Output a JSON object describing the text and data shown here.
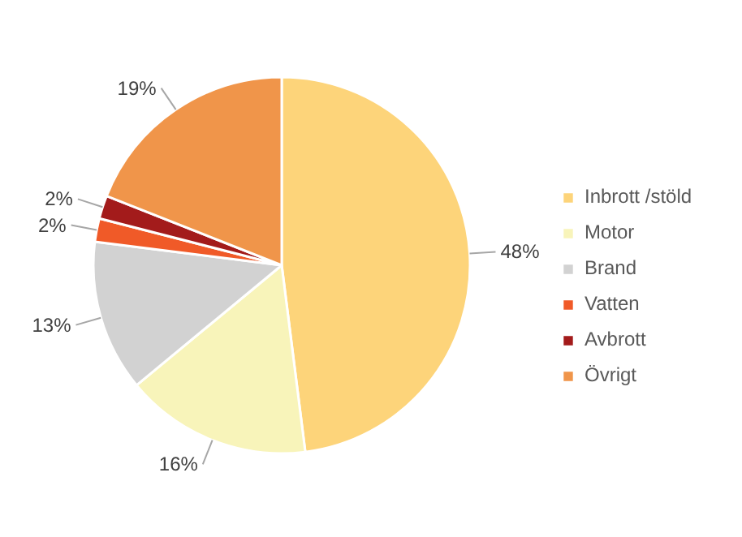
{
  "chart_data": {
    "type": "pie",
    "categories": [
      "Inbrott /stöld",
      "Motor",
      "Brand",
      "Vatten",
      "Avbrott",
      "Övrigt"
    ],
    "values": [
      48,
      16,
      13,
      2,
      2,
      19
    ],
    "value_labels": [
      "48%",
      "16%",
      "13%",
      "2%",
      "2%",
      "19%"
    ],
    "colors": [
      "#fdd47a",
      "#f8f4ba",
      "#d2d2d2",
      "#f05a28",
      "#a31b1b",
      "#f0954a"
    ],
    "legend": "right"
  }
}
